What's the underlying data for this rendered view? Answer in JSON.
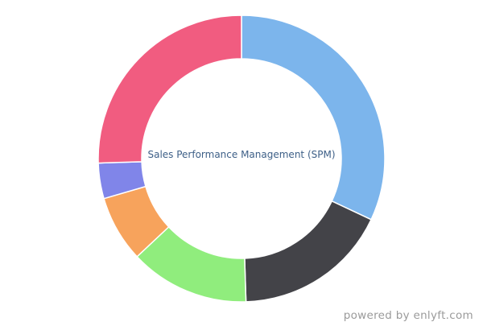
{
  "chart_data": {
    "type": "pie",
    "title": "Sales Performance Management (SPM)",
    "categories": [
      "",
      "",
      "",
      "",
      "",
      ""
    ],
    "values": [
      32.0,
      17.5,
      13.5,
      7.5,
      4.0,
      25.5
    ],
    "colors": [
      "#7cb5ec",
      "#434348",
      "#90ed7d",
      "#f7a35c",
      "#8085e9",
      "#f15c80"
    ]
  },
  "footer": {
    "credit": "powered by enlyft.com"
  }
}
